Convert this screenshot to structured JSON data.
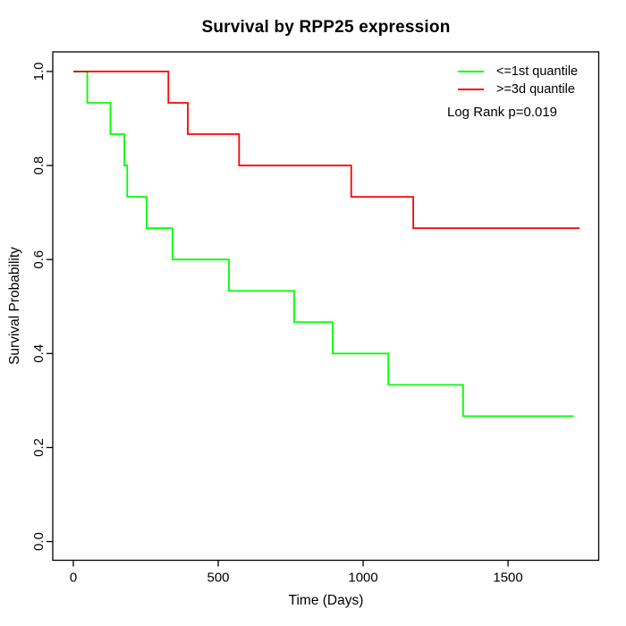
{
  "chart_data": {
    "type": "line",
    "variant": "kaplan-meier-step",
    "title": "Survival by RPP25 expression",
    "xlabel": "Time (Days)",
    "ylabel": "Survival Probability",
    "xticks": [
      0,
      500,
      1000,
      1500
    ],
    "yticks": [
      "0.0",
      "0.2",
      "0.4",
      "0.6",
      "0.8",
      "1.0"
    ],
    "xlim": [
      -71,
      1813
    ],
    "ylim": [
      -0.0398,
      1.0417
    ],
    "grid": false,
    "legend_position": "top-right-inside",
    "annotation": "Log Rank p=0.019",
    "axis_color": "#000000",
    "overlap_color": "#b23000",
    "series": [
      {
        "name": "<=1st quantile",
        "color": "#00ff00",
        "steps": [
          [
            0,
            1.0
          ],
          [
            48,
            0.9333
          ],
          [
            128,
            0.8667
          ],
          [
            176,
            0.8
          ],
          [
            186,
            0.7333
          ],
          [
            253,
            0.6667
          ],
          [
            342,
            0.6
          ],
          [
            537,
            0.5333
          ],
          [
            762,
            0.4667
          ],
          [
            895,
            0.4
          ],
          [
            1087,
            0.3333
          ],
          [
            1345,
            0.2667
          ]
        ],
        "end_time": 1727
      },
      {
        "name": ">=3d quantile",
        "color": "#ff0000",
        "steps": [
          [
            0,
            1.0
          ],
          [
            328,
            0.9333
          ],
          [
            395,
            0.8667
          ],
          [
            572,
            0.8
          ],
          [
            959,
            0.7333
          ],
          [
            1173,
            0.6667
          ]
        ],
        "end_time": 1747
      }
    ]
  }
}
